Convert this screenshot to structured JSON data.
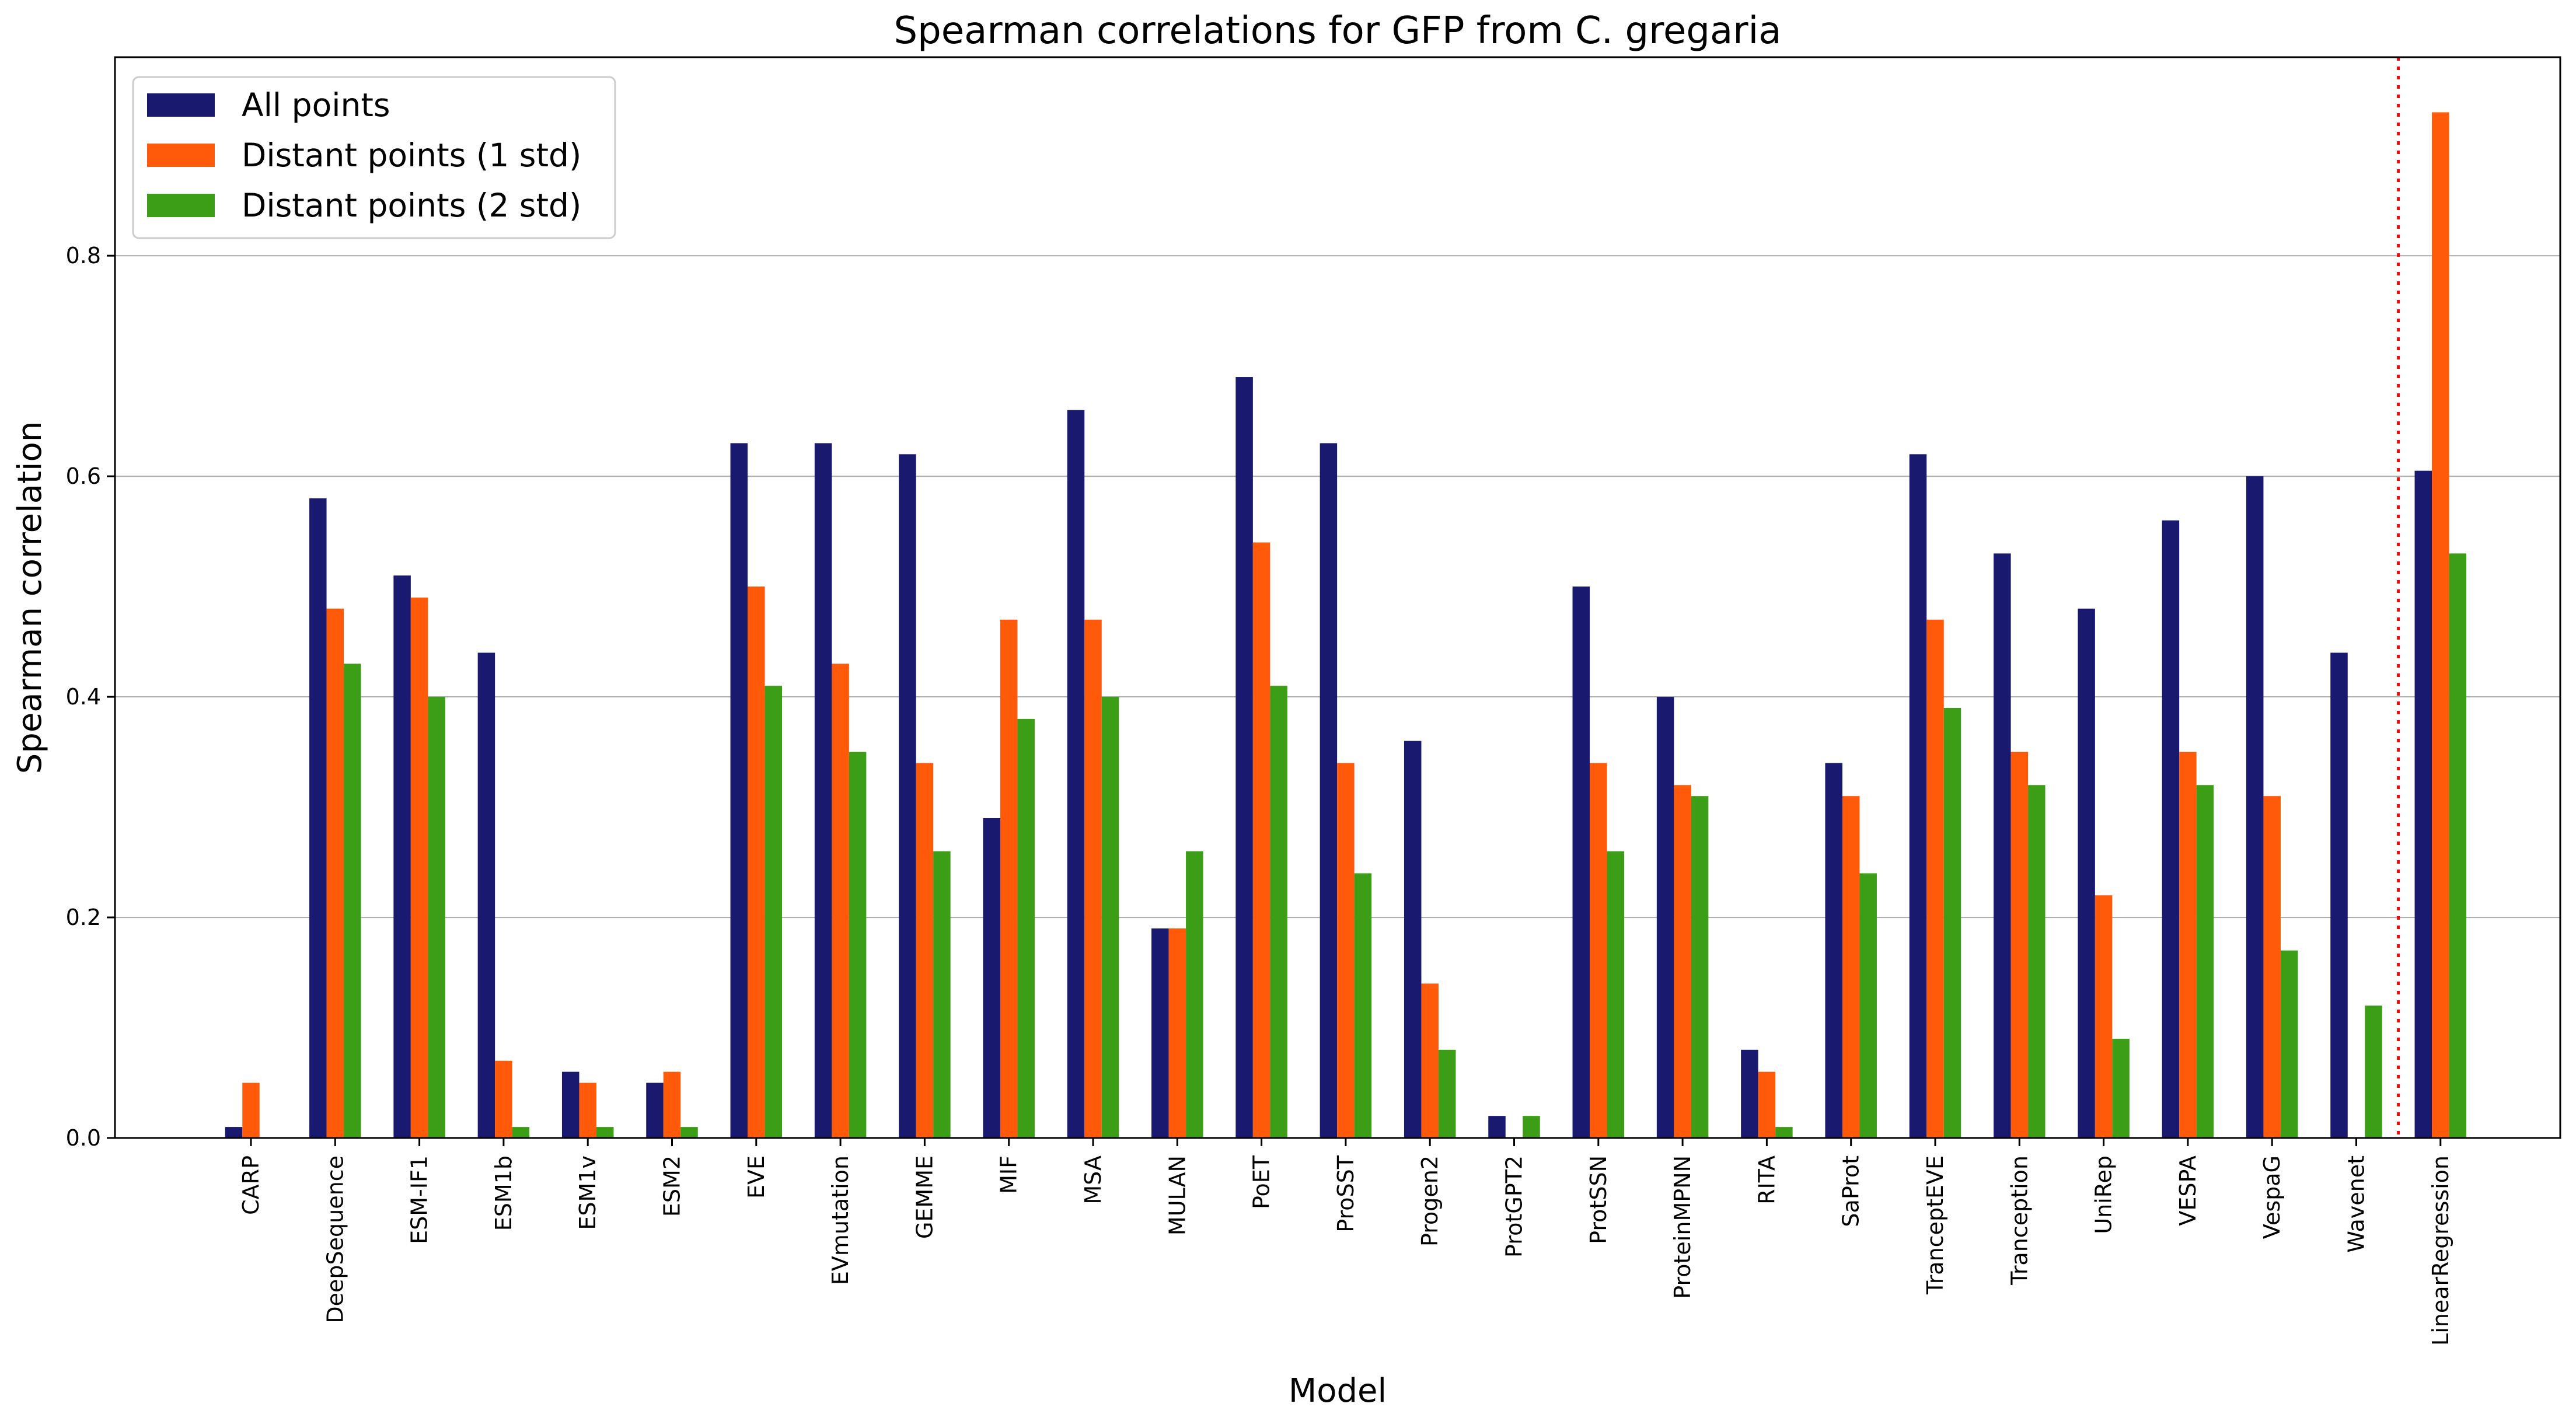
{
  "chart_data": {
    "type": "bar",
    "title": "Spearman correlations for GFP from C. gregaria",
    "xlabel": "Model",
    "ylabel": "Spearman correlation",
    "ylim": [
      0,
      0.98
    ],
    "yticks": [
      0.0,
      0.2,
      0.4,
      0.6,
      0.8
    ],
    "ytick_labels": [
      "0.0",
      "0.2",
      "0.4",
      "0.6",
      "0.8"
    ],
    "grid": "horizontal",
    "legend_position": "top-left",
    "separator_after_category": "Wavenet",
    "categories": [
      "CARP",
      "DeepSequence",
      "ESM-IF1",
      "ESM1b",
      "ESM1v",
      "ESM2",
      "EVE",
      "EVmutation",
      "GEMME",
      "MIF",
      "MSA",
      "MULAN",
      "PoET",
      "ProSST",
      "Progen2",
      "ProtGPT2",
      "ProtSSN",
      "ProteinMPNN",
      "RITA",
      "SaProt",
      "TranceptEVE",
      "Tranception",
      "UniRep",
      "VESPA",
      "VespaG",
      "Wavenet",
      "LinearRegression"
    ],
    "series": [
      {
        "name": "All points",
        "color": "#191970",
        "values": [
          0.01,
          0.58,
          0.51,
          0.44,
          0.06,
          0.05,
          0.63,
          0.63,
          0.62,
          0.29,
          0.66,
          0.19,
          0.69,
          0.63,
          0.36,
          0.02,
          0.5,
          0.4,
          0.08,
          0.34,
          0.62,
          0.53,
          0.48,
          0.56,
          0.6,
          0.44,
          0.605
        ]
      },
      {
        "name": "Distant points (1 std)",
        "color": "#ff5a0a",
        "values": [
          0.05,
          0.48,
          0.49,
          0.07,
          0.05,
          0.06,
          0.5,
          0.43,
          0.34,
          0.47,
          0.47,
          0.19,
          0.54,
          0.34,
          0.14,
          0.0,
          0.34,
          0.32,
          0.06,
          0.31,
          0.47,
          0.35,
          0.22,
          0.35,
          0.31,
          0.0,
          0.93
        ]
      },
      {
        "name": "Distant points (2 std)",
        "color": "#3c9d17",
        "values": [
          0.0,
          0.43,
          0.4,
          0.01,
          0.01,
          0.01,
          0.41,
          0.35,
          0.26,
          0.38,
          0.4,
          0.26,
          0.41,
          0.24,
          0.08,
          0.02,
          0.26,
          0.31,
          0.01,
          0.24,
          0.39,
          0.32,
          0.09,
          0.32,
          0.17,
          0.12,
          0.53
        ]
      }
    ]
  }
}
